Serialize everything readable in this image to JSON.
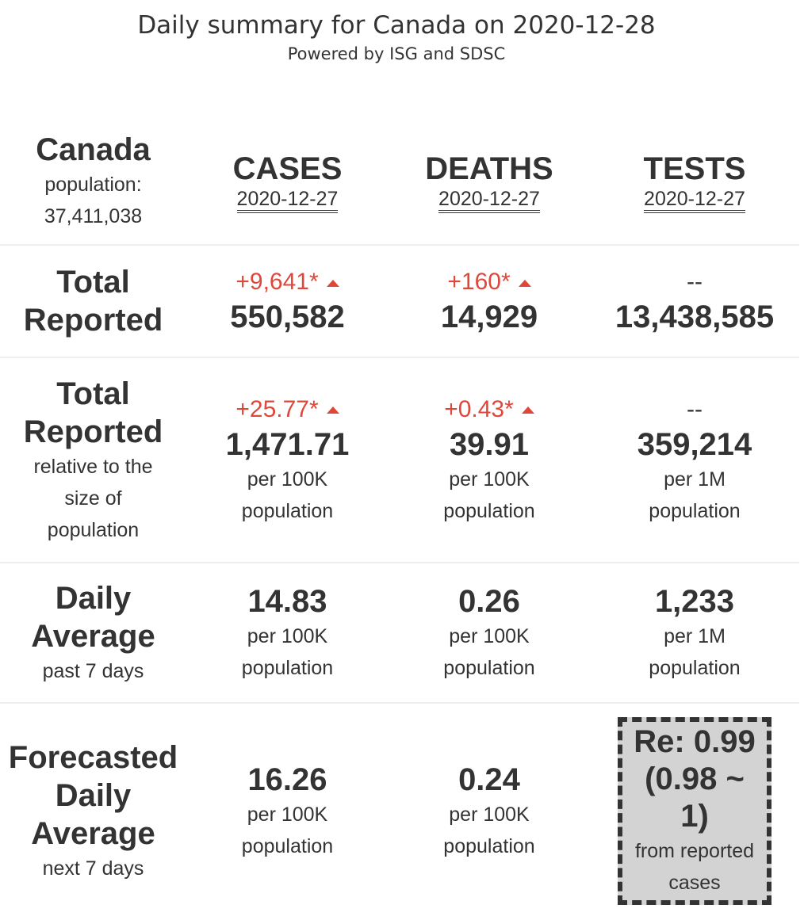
{
  "header": {
    "title": "Daily summary for Canada on 2020-12-28",
    "subtitle": "Powered by ISG and SDSC"
  },
  "region": {
    "name": "Canada",
    "population_label": "population:",
    "population": "37,411,038"
  },
  "columns": [
    {
      "label": "CASES",
      "date": "2020-12-27"
    },
    {
      "label": "DEATHS",
      "date": "2020-12-27"
    },
    {
      "label": "TESTS",
      "date": "2020-12-27"
    }
  ],
  "rows": {
    "total": {
      "label1": "Total",
      "label2": "Reported",
      "cells": [
        {
          "delta": "+9,641*",
          "value": "550,582"
        },
        {
          "delta": "+160*",
          "value": "14,929"
        },
        {
          "delta": "--",
          "value": "13,438,585"
        }
      ]
    },
    "relative": {
      "label1": "Total",
      "label2": "Reported",
      "sub1": "relative to the",
      "sub2": "size of",
      "sub3": "population",
      "cells": [
        {
          "delta": "+25.77*",
          "value": "1,471.71",
          "unit": "per 100K",
          "unit2": "population"
        },
        {
          "delta": "+0.43*",
          "value": "39.91",
          "unit": "per 100K",
          "unit2": "population"
        },
        {
          "delta": "--",
          "value": "359,214",
          "unit": "per 1M",
          "unit2": "population"
        }
      ]
    },
    "daily": {
      "label1": "Daily",
      "label2": "Average",
      "sub": "past 7 days",
      "cells": [
        {
          "value": "14.83",
          "unit": "per 100K",
          "unit2": "population"
        },
        {
          "value": "0.26",
          "unit": "per 100K",
          "unit2": "population"
        },
        {
          "value": "1,233",
          "unit": "per 1M",
          "unit2": "population"
        }
      ]
    },
    "forecast": {
      "label1": "Forecasted",
      "label2": "Daily",
      "label3": "Average",
      "sub": "next 7 days",
      "cells": [
        {
          "value": "16.26",
          "unit": "per 100K",
          "unit2": "population"
        },
        {
          "value": "0.24",
          "unit": "per 100K",
          "unit2": "population"
        }
      ],
      "re": {
        "line1": "Re: 0.99",
        "line2": "(0.98 ~",
        "line3": "1)",
        "sub1": "from reported",
        "sub2": "cases"
      }
    }
  },
  "colors": {
    "increase": "#e0473b",
    "text": "#333333",
    "re_box": "#d3d3d3"
  }
}
